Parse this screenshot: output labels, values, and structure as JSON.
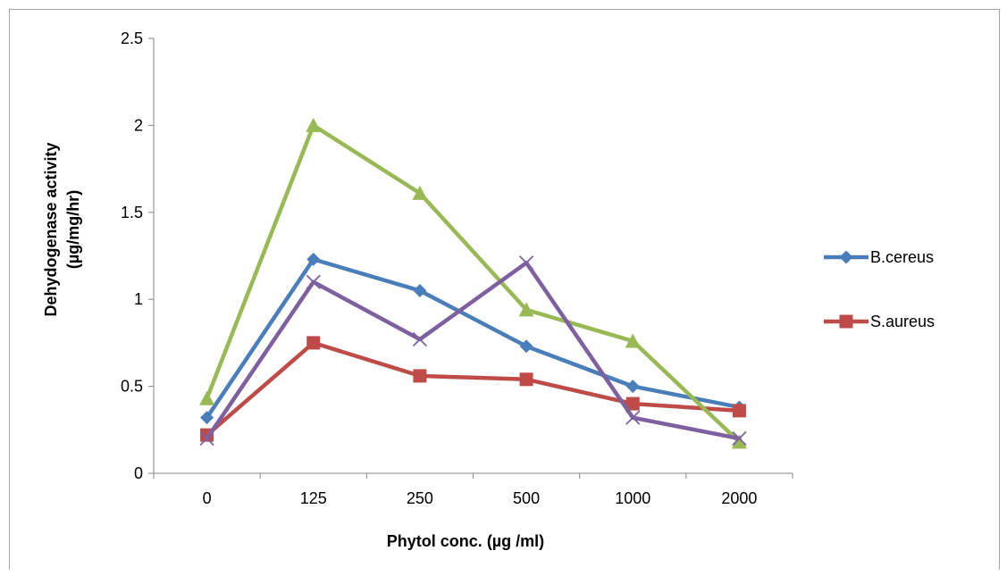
{
  "chart_data": {
    "type": "line",
    "categories": [
      "0",
      "125",
      "250",
      "500",
      "1000",
      "2000"
    ],
    "ylim": [
      0,
      2.5
    ],
    "yticks": [
      "0",
      "0.5",
      "1",
      "1.5",
      "2",
      "2.5"
    ],
    "xlabel": "Phytol conc. (µg /ml)",
    "ylabel_line1": "Dehydogenase activity",
    "ylabel_line2": "(µg/mg/hr)",
    "grid": false,
    "legend_position": "right",
    "series": [
      {
        "name": "B.cereus",
        "color": "#4a7ebb",
        "marker": "diamond",
        "in_legend": true,
        "values": [
          0.32,
          1.23,
          1.05,
          0.73,
          0.5,
          0.38
        ]
      },
      {
        "name": "S.aureus",
        "color": "#be4b48",
        "marker": "square",
        "in_legend": true,
        "values": [
          0.22,
          0.75,
          0.56,
          0.54,
          0.4,
          0.36
        ]
      },
      {
        "color": "#98b954",
        "marker": "triangle",
        "in_legend": false,
        "values": [
          0.43,
          2.0,
          1.61,
          0.94,
          0.76,
          0.18
        ]
      },
      {
        "color": "#7d60a0",
        "marker": "x",
        "in_legend": false,
        "values": [
          0.2,
          1.1,
          0.77,
          1.21,
          0.32,
          0.2
        ]
      }
    ]
  }
}
